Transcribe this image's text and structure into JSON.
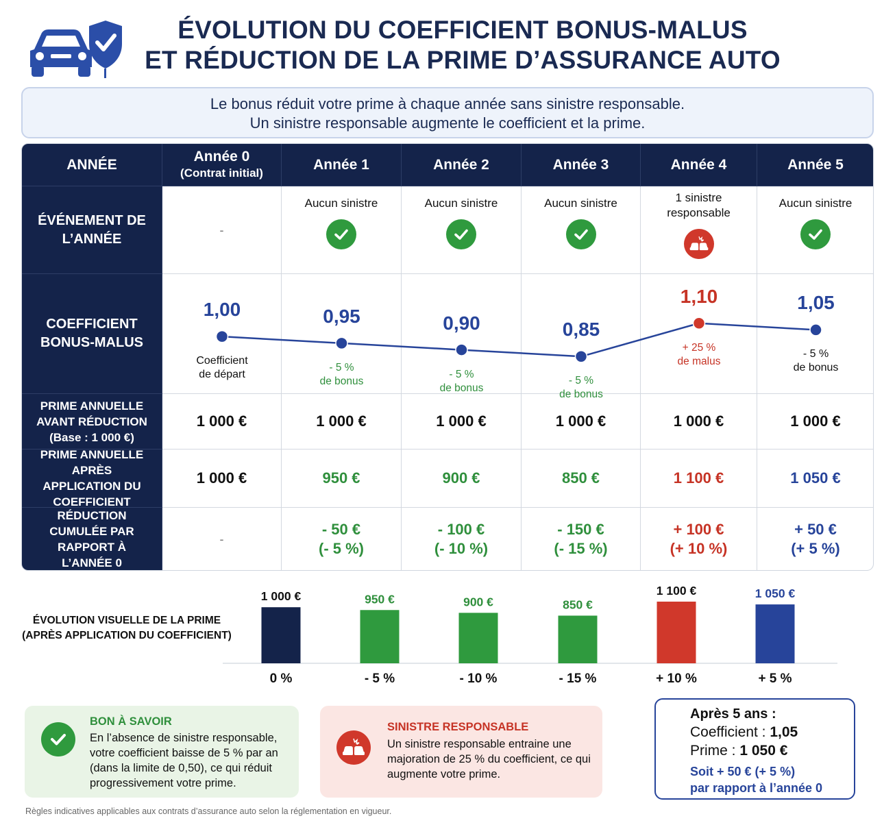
{
  "title": {
    "line1": "ÉVOLUTION DU COEFFICIENT BONUS-MALUS",
    "line2": "ET RÉDUCTION DE LA PRIME D’ASSURANCE AUTO"
  },
  "intro": {
    "line1": "Le bonus réduit votre prime à chaque année sans sinistre responsable.",
    "line2": "Un sinistre responsable augmente le coefficient et la prime."
  },
  "colors": {
    "navy": "#14234a",
    "green": "#2f9a3e",
    "red": "#d0382b",
    "blue": "#27449a"
  },
  "table": {
    "header_label": "ANNÉE",
    "row_labels": {
      "event": "ÉVÉNEMENT DE L’ANNÉE",
      "coefficient": "COEFFICIENT BONUS-MALUS",
      "prime_before": "PRIME ANNUELLE AVANT RÉDUCTION (Base : 1 000 €)",
      "prime_after": "PRIME ANNUELLE APRÈS APPLICATION DU COEFFICIENT",
      "cumulative": "RÉDUCTION CUMULÉE PAR RAPPORT À L’ANNÉE 0"
    },
    "years": [
      {
        "label": "Année 0",
        "sublabel": "(Contrat initial)",
        "event": "-",
        "icon": "none",
        "coef": "1,00",
        "coef_note1": "Coefficient",
        "coef_note2": "de départ",
        "tone": "neutral",
        "prime_before": "1 000 €",
        "prime_after": "1 000 €",
        "cum1": "-",
        "cum2": ""
      },
      {
        "label": "Année 1",
        "sublabel": "",
        "event": "Aucun sinistre",
        "icon": "check-icon",
        "coef": "0,95",
        "coef_note1": "- 5 %",
        "coef_note2": "de bonus",
        "tone": "green",
        "prime_before": "1 000 €",
        "prime_after": "950 €",
        "cum1": "- 50 €",
        "cum2": "(- 5 %)"
      },
      {
        "label": "Année 2",
        "sublabel": "",
        "event": "Aucun sinistre",
        "icon": "check-icon",
        "coef": "0,90",
        "coef_note1": "- 5 %",
        "coef_note2": "de bonus",
        "tone": "green",
        "prime_before": "1 000 €",
        "prime_after": "900 €",
        "cum1": "- 100 €",
        "cum2": "(- 10 %)"
      },
      {
        "label": "Année 3",
        "sublabel": "",
        "event": "Aucun sinistre",
        "icon": "check-icon",
        "coef": "0,85",
        "coef_note1": "- 5 %",
        "coef_note2": "de bonus",
        "tone": "green",
        "prime_before": "1 000 €",
        "prime_after": "850 €",
        "cum1": "- 150 €",
        "cum2": "(- 15 %)"
      },
      {
        "label": "Année 4",
        "sublabel": "",
        "event": "1 sinistre responsable",
        "icon": "car-crash-icon",
        "coef": "1,10",
        "coef_note1": "+ 25 %",
        "coef_note2": "de malus",
        "tone": "red",
        "prime_before": "1 000 €",
        "prime_after": "1 100 €",
        "cum1": "+ 100 €",
        "cum2": "(+ 10 %)"
      },
      {
        "label": "Année 5",
        "sublabel": "",
        "event": "Aucun sinistre",
        "icon": "check-icon",
        "coef": "1,05",
        "coef_note1": "- 5 %",
        "coef_note2": "de bonus",
        "tone": "neutral",
        "prime_before": "1 000 €",
        "prime_after": "1 050 €",
        "cum1": "+ 50 €",
        "cum2": "(+ 5 %)"
      }
    ]
  },
  "chart_data": [
    {
      "type": "line",
      "title": "",
      "categories": [
        "Année 0",
        "Année 1",
        "Année 2",
        "Année 3",
        "Année 4",
        "Année 5"
      ],
      "values": [
        1.0,
        0.95,
        0.9,
        0.85,
        1.1,
        1.05
      ],
      "value_labels": [
        "1,00",
        "0,95",
        "0,90",
        "0,85",
        "1,10",
        "1,05"
      ],
      "point_colors": [
        "#27449a",
        "#27449a",
        "#27449a",
        "#27449a",
        "#d0382b",
        "#27449a"
      ],
      "ylim": [
        0.8,
        1.15
      ]
    },
    {
      "type": "bar",
      "title": "ÉVOLUTION VISUELLE DE LA PRIME (APRÈS APPLICATION DU COEFFICIENT)",
      "categories": [
        "Année 0",
        "Année 1",
        "Année 2",
        "Année 3",
        "Année 4",
        "Année 5"
      ],
      "values": [
        1000,
        950,
        900,
        850,
        1100,
        1050
      ],
      "value_labels": [
        "1 000 €",
        "950 €",
        "900 €",
        "850 €",
        "1 100 €",
        "1 050 €"
      ],
      "bottom_labels": [
        "0 %",
        "- 5 %",
        "- 10 %",
        "- 15 %",
        "+ 10 %",
        "+ 5 %"
      ],
      "value_label_colors": [
        "#111111",
        "#2f8f3c",
        "#2f8f3c",
        "#2f8f3c",
        "#111111",
        "#27449a"
      ],
      "bar_colors": [
        "#14234a",
        "#2f9a3e",
        "#2f9a3e",
        "#2f9a3e",
        "#d0382b",
        "#27449a"
      ],
      "ylim": [
        0,
        1100
      ]
    }
  ],
  "good_box": {
    "title": "BON À SAVOIR",
    "text": "En l’absence de sinistre responsable, votre coefficient baisse de 5 % par an (dans la limite de 0,50), ce qui réduit progressivement votre prime."
  },
  "bad_box": {
    "title": "SINISTRE RESPONSABLE",
    "text": "Un sinistre responsable entraine une majoration de 25 % du coefficient, ce qui augmente votre prime."
  },
  "summary": {
    "heading": "Après 5 ans :",
    "coef_label": "Coefficient :",
    "coef_value": "1,05",
    "prime_label": "Prime :",
    "prime_value": "1 050 €",
    "line1": "Soit + 50 € (+ 5 %)",
    "line2": "par rapport à l’année 0"
  },
  "footnote": "Règles indicatives applicables aux contrats d’assurance auto selon la réglementation en vigueur."
}
